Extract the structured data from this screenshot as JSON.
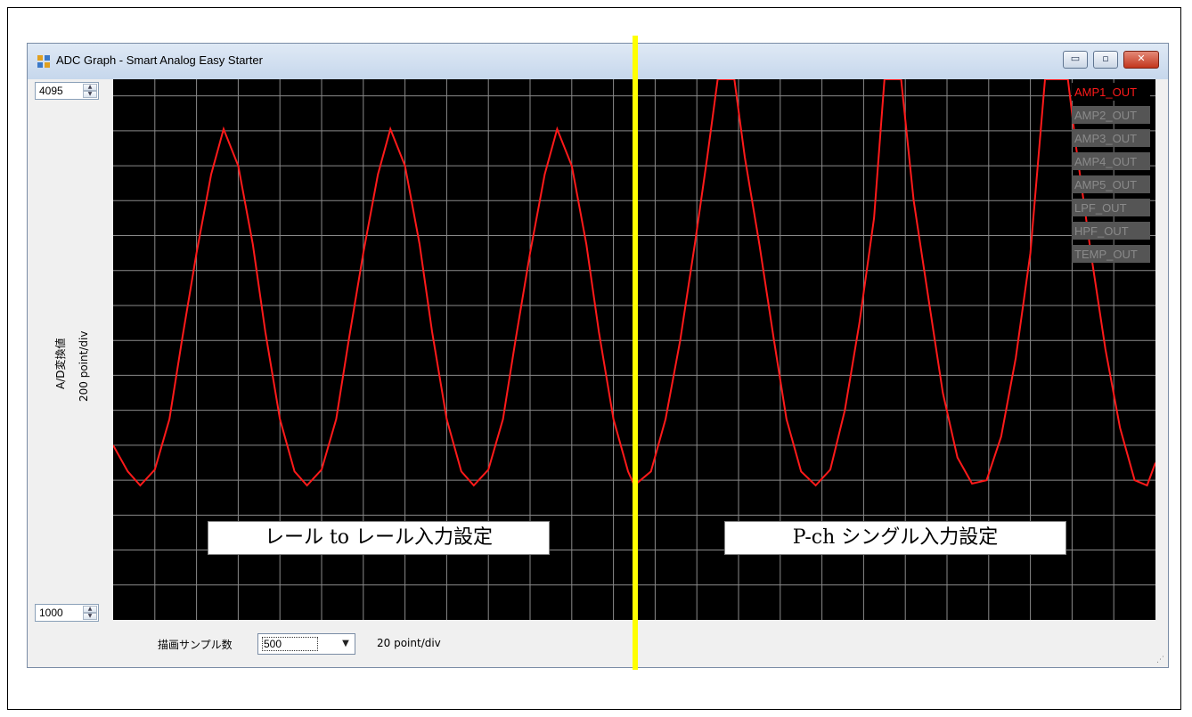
{
  "window": {
    "title": "ADC Graph - Smart Analog Easy Starter",
    "buttons": {
      "minimize": "▭",
      "maximize": "▫",
      "close": "✕"
    }
  },
  "y_axis": {
    "max_value": "4095",
    "min_value": "1000",
    "label": "A/D変換値",
    "div_label": "200 point/div"
  },
  "bottom": {
    "samples_label": "描画サンプル数",
    "samples_value": "500",
    "x_div_label": "20 point/div"
  },
  "legend": {
    "items": [
      {
        "label": "AMP1_OUT",
        "active": true
      },
      {
        "label": "AMP2_OUT",
        "active": false
      },
      {
        "label": "AMP3_OUT",
        "active": false
      },
      {
        "label": "AMP4_OUT",
        "active": false
      },
      {
        "label": "AMP5_OUT",
        "active": false
      },
      {
        "label": "LPF_OUT",
        "active": false
      },
      {
        "label": "HPF_OUT",
        "active": false
      },
      {
        "label": "TEMP_OUT",
        "active": false
      }
    ]
  },
  "annotations": {
    "left": "レール to レール入力設定",
    "right": "P-ch シングル入力設定"
  },
  "colors": {
    "plot_bg": "#000000",
    "grid": "#8a8a8a",
    "trace": "#ff1a1a",
    "divider": "#ffff00",
    "legend_active_text": "#ff1a1a",
    "legend_inactive_bg": "#555555",
    "legend_inactive_text": "#8a8a8a"
  },
  "chart_data": {
    "type": "line",
    "ylim": [
      1000,
      4095
    ],
    "xlim": [
      0,
      500
    ],
    "grid": true,
    "y_div": 200,
    "x_div": 20,
    "series": [
      {
        "name": "AMP1_OUT",
        "points": [
          [
            0,
            2000
          ],
          [
            7,
            1850
          ],
          [
            13,
            1770
          ],
          [
            20,
            1860
          ],
          [
            27,
            2150
          ],
          [
            33,
            2600
          ],
          [
            40,
            3100
          ],
          [
            47,
            3550
          ],
          [
            53,
            3810
          ],
          [
            60,
            3600
          ],
          [
            67,
            3150
          ],
          [
            73,
            2650
          ],
          [
            80,
            2150
          ],
          [
            87,
            1850
          ],
          [
            93,
            1770
          ],
          [
            100,
            1860
          ],
          [
            107,
            2150
          ],
          [
            113,
            2600
          ],
          [
            120,
            3100
          ],
          [
            127,
            3550
          ],
          [
            133,
            3810
          ],
          [
            140,
            3600
          ],
          [
            147,
            3150
          ],
          [
            153,
            2650
          ],
          [
            160,
            2150
          ],
          [
            167,
            1850
          ],
          [
            173,
            1770
          ],
          [
            180,
            1860
          ],
          [
            187,
            2150
          ],
          [
            193,
            2600
          ],
          [
            200,
            3100
          ],
          [
            207,
            3550
          ],
          [
            213,
            3810
          ],
          [
            220,
            3600
          ],
          [
            227,
            3150
          ],
          [
            233,
            2650
          ],
          [
            240,
            2150
          ],
          [
            247,
            1850
          ],
          [
            250,
            1770
          ],
          [
            258,
            1850
          ],
          [
            265,
            2150
          ],
          [
            272,
            2600
          ],
          [
            279,
            3150
          ],
          [
            285,
            3650
          ],
          [
            290,
            4095
          ],
          [
            298,
            4095
          ],
          [
            303,
            3650
          ],
          [
            310,
            3150
          ],
          [
            317,
            2600
          ],
          [
            323,
            2150
          ],
          [
            330,
            1850
          ],
          [
            337,
            1770
          ],
          [
            344,
            1860
          ],
          [
            351,
            2200
          ],
          [
            358,
            2700
          ],
          [
            365,
            3300
          ],
          [
            370,
            4095
          ],
          [
            378,
            4095
          ],
          [
            384,
            3400
          ],
          [
            391,
            2850
          ],
          [
            398,
            2300
          ],
          [
            405,
            1930
          ],
          [
            412,
            1780
          ],
          [
            419,
            1800
          ],
          [
            426,
            2050
          ],
          [
            433,
            2500
          ],
          [
            440,
            3100
          ],
          [
            447,
            4095
          ],
          [
            458,
            4095
          ],
          [
            462,
            3700
          ],
          [
            469,
            3100
          ],
          [
            476,
            2550
          ],
          [
            483,
            2100
          ],
          [
            490,
            1800
          ],
          [
            496,
            1770
          ],
          [
            500,
            1900
          ]
        ]
      }
    ]
  }
}
